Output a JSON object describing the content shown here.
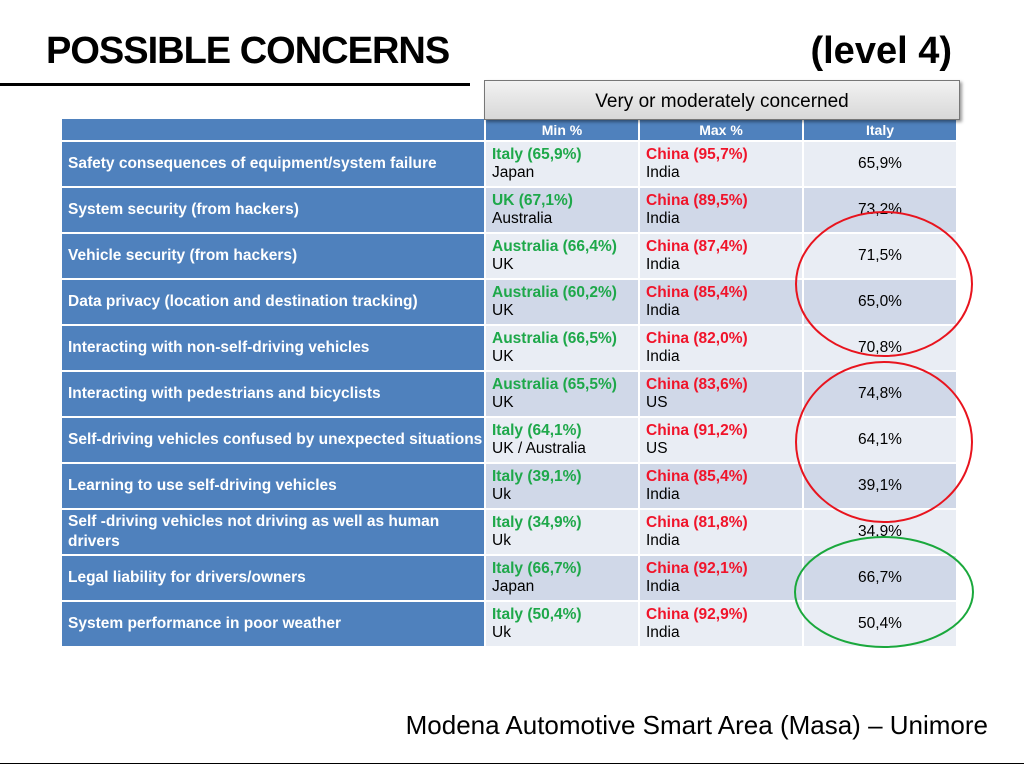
{
  "title": "POSSIBLE CONCERNS",
  "level": "(level 4)",
  "group_header": "Very or moderately concerned",
  "columns": [
    "",
    "Min %",
    "Max %",
    "Italy"
  ],
  "rows": [
    {
      "concern": "Safety consequences of equipment/system failure",
      "min": "Italy (65,9%)",
      "min_sub": "Japan",
      "max": "China (95,7%)",
      "max_sub": "India",
      "italy": "65,9%"
    },
    {
      "concern": "System security (from hackers)",
      "min": "UK (67,1%)",
      "min_sub": "Australia",
      "max": "China (89,5%)",
      "max_sub": "India",
      "italy": "73,2%"
    },
    {
      "concern": "Vehicle security (from hackers)",
      "min": "Australia (66,4%)",
      "min_sub": "UK",
      "max": "China (87,4%)",
      "max_sub": "India",
      "italy": "71,5%"
    },
    {
      "concern": "Data privacy (location and destination tracking)",
      "min": "Australia (60,2%)",
      "min_sub": "UK",
      "max": "China (85,4%)",
      "max_sub": "India",
      "italy": "65,0%"
    },
    {
      "concern": "Interacting with non-self-driving vehicles",
      "min": "Australia (66,5%)",
      "min_sub": "UK",
      "max": "China (82,0%)",
      "max_sub": "India",
      "italy": "70,8%"
    },
    {
      "concern": "Interacting with pedestrians and bicyclists",
      "min": "Australia (65,5%)",
      "min_sub": "UK",
      "max": "China (83,6%)",
      "max_sub": "US",
      "italy": "74,8%"
    },
    {
      "concern": "Self-driving vehicles confused by unexpected situations",
      "min": "Italy (64,1%)",
      "min_sub": "UK / Australia",
      "max": "China (91,2%)",
      "max_sub": "US",
      "italy": "64,1%"
    },
    {
      "concern": "Learning to use self-driving vehicles",
      "min": "Italy (39,1%)",
      "min_sub": "Uk",
      "max": "China (85,4%)",
      "max_sub": "India",
      "italy": "39,1%"
    },
    {
      "concern": "Self -driving vehicles not driving as well as human drivers",
      "min": "Italy (34,9%)",
      "min_sub": "Uk",
      "max": "China (81,8%)",
      "max_sub": "India",
      "italy": "34,9%"
    },
    {
      "concern": "Legal liability for drivers/owners",
      "min": "Italy (66,7%)",
      "min_sub": "Japan",
      "max": "China (92,1%)",
      "max_sub": "India",
      "italy": "66,7%"
    },
    {
      "concern": "System performance in poor weather",
      "min": "Italy (50,4%)",
      "min_sub": "Uk",
      "max": "China (92,9%)",
      "max_sub": "India",
      "italy": "50,4%"
    }
  ],
  "colors": {
    "header_blue": "#4f81bd",
    "min_green": "#1ea84a",
    "max_red": "#f0142a",
    "circle_red": "#e8141e",
    "circle_green": "#1aa83c"
  },
  "footer": "Modena Automotive Smart Area (Masa) – Unimore"
}
